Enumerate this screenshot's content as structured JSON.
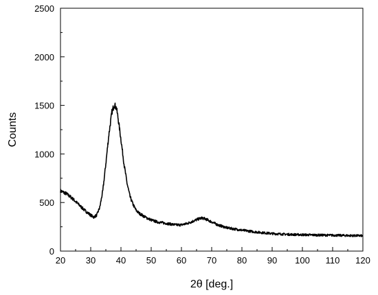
{
  "chart_data": {
    "type": "line",
    "title": "",
    "xlabel": "2θ [deg.]",
    "ylabel": "Counts",
    "xlim": [
      20,
      120
    ],
    "ylim": [
      0,
      2500
    ],
    "x_ticks": [
      20,
      30,
      40,
      50,
      60,
      70,
      80,
      90,
      100,
      110,
      120
    ],
    "y_ticks": [
      0,
      500,
      1000,
      1500,
      2000,
      2500
    ],
    "x_tick_labels": [
      "20",
      "30",
      "40",
      "50",
      "60",
      "70",
      "80",
      "90",
      "100",
      "110",
      "120"
    ],
    "y_tick_labels": [
      "0",
      "500",
      "1000",
      "1500",
      "2000",
      "2500"
    ],
    "grid": false,
    "legend": "none",
    "line_color": "#000000",
    "series": [
      {
        "x": [
          20,
          22,
          24,
          26,
          28,
          30,
          31,
          32,
          33,
          34,
          35,
          36,
          37,
          37.8,
          38.5,
          39,
          40,
          41,
          42,
          43,
          44,
          45,
          46,
          48,
          50,
          52,
          55,
          58,
          60,
          62,
          64,
          66,
          67,
          68,
          70,
          72,
          75,
          78,
          80,
          85,
          90,
          95,
          100,
          105,
          110,
          115,
          120
        ],
        "y": [
          620,
          590,
          540,
          480,
          420,
          370,
          350,
          370,
          450,
          620,
          900,
          1200,
          1430,
          1510,
          1470,
          1380,
          1150,
          900,
          700,
          560,
          480,
          420,
          390,
          350,
          320,
          300,
          285,
          270,
          270,
          285,
          310,
          335,
          340,
          330,
          300,
          270,
          240,
          225,
          215,
          195,
          180,
          172,
          168,
          165,
          163,
          160,
          158
        ]
      }
    ]
  }
}
